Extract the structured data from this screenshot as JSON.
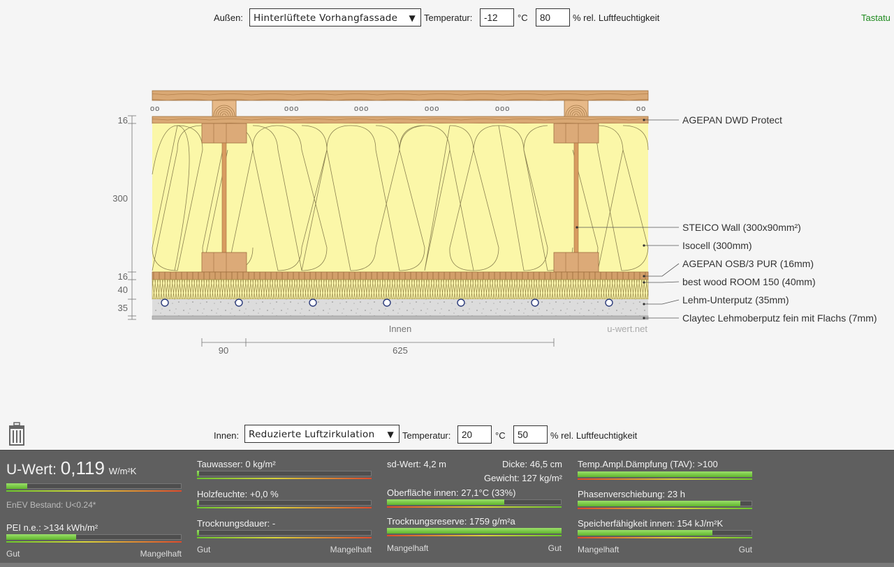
{
  "outside": {
    "label": "Außen:",
    "climate_value": "Hinterlüftete Vorhangfassade",
    "temp_label": "Temperatur:",
    "temp_value": "-12",
    "temp_unit": "°C",
    "humidity_value": "80",
    "humidity_unit": "% rel. Luftfeuchtigkeit"
  },
  "keyboard_label": "Tastatu",
  "inside": {
    "label": "Innen:",
    "climate_value": "Reduzierte Luftzirkulation",
    "temp_label": "Temperatur:",
    "temp_value": "20",
    "temp_unit": "°C",
    "humidity_value": "50",
    "humidity_unit": "% rel. Luftfeuchtigkeit"
  },
  "diagram": {
    "layer_labels": [
      "AGEPAN DWD Protect",
      "STEICO  Wall (300x90mm²)",
      "Isocell (300mm)",
      "AGEPAN OSB/3 PUR (16mm)",
      "best wood ROOM 150 (40mm)",
      "Lehm-Unterputz (35mm)",
      "Claytec Lehmoberputz fein mit Flachs (7mm)"
    ],
    "thickness_labels": [
      "16",
      "300",
      "16",
      "40",
      "35"
    ],
    "spacing_labels": [
      "90",
      "625"
    ],
    "inside_label": "Innen",
    "watermark": "u-wert.net",
    "ventilation_marks": [
      "oo",
      "ooo",
      "ooo",
      "ooo",
      "ooo",
      "oo"
    ]
  },
  "results": {
    "u_title": "U-Wert: ",
    "u_value": "0,119",
    "u_unit": "W/m²K",
    "u_bar_fraction": 0.12,
    "u_note": "EnEV Bestand: U<0.24*",
    "pei_label": "PEI n.e.: >134 kWh/m²",
    "pei_bar_fraction": 0.4,
    "col1_scale_left": "Gut",
    "col1_scale_right": "Mangelhaft",
    "condensate_label": "Tauwasser: 0 kg/m²",
    "condensate_bar_fraction": 0.01,
    "wood_moisture_label": "Holzfeuchte: +0,0 %",
    "wood_moisture_bar_fraction": 0.01,
    "drying_time_label": "Trocknungsdauer: -",
    "drying_time_bar_fraction": 0.01,
    "col2_scale_left": "Gut",
    "col2_scale_right": "Mangelhaft",
    "sd_label": "sd-Wert: 4,2 m",
    "thickness_label": "Dicke: 46,5 cm",
    "weight_label": "Gewicht: 127 kg/m²",
    "surface_label": "Oberfläche innen: 27,1°C (33%)",
    "surface_bar_fraction": 0.67,
    "drying_reserve_label": "Trocknungsreserve: 1759 g/m²a",
    "drying_reserve_bar_fraction": 1.0,
    "col3_scale_left": "Mangelhaft",
    "col3_scale_right": "Gut",
    "tav_label": "Temp.Ampl.Dämpfung (TAV): >100",
    "tav_bar_fraction": 1.0,
    "phase_label": "Phasenverschiebung: 23 h",
    "phase_bar_fraction": 0.93,
    "storage_label": "Speicherfähigkeit innen: 154 kJ/m²K",
    "storage_bar_fraction": 0.77,
    "col4_scale_left": "Mangelhaft",
    "col4_scale_right": "Gut"
  },
  "colors": {
    "insulation": "#fbf7a8",
    "wood": "#dcaa78",
    "panel": "#5f5f5f",
    "bar_fill": "#6cc72c",
    "keyboard_link": "#1e8a1e"
  }
}
